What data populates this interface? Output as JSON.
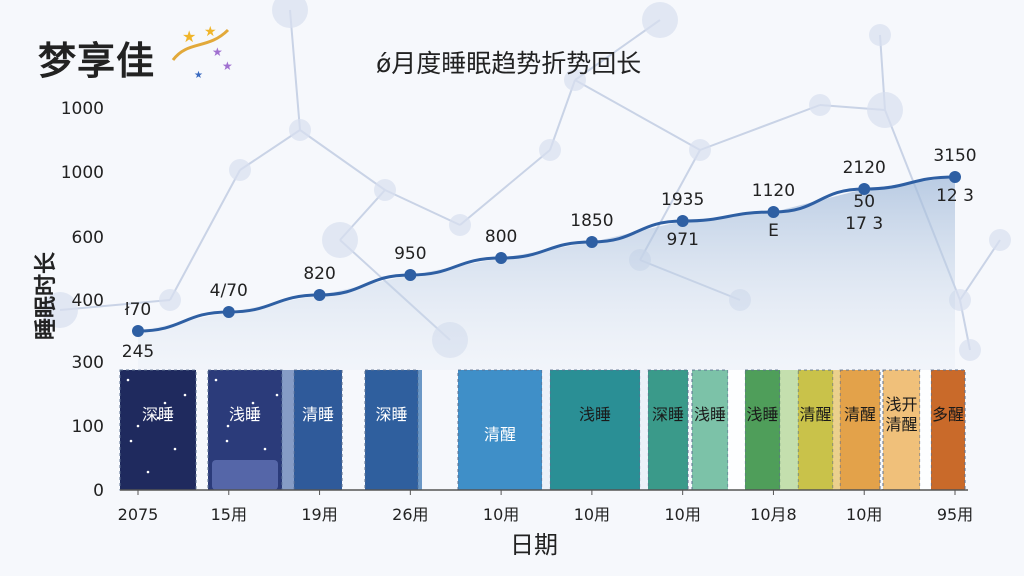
{
  "brand": {
    "name": "梦享佳"
  },
  "chart_data": {
    "type": "line",
    "title": "ǿ月度睡眠趋势折势回长",
    "xlabel": "日期",
    "ylabel": "睡眠时长",
    "y_ticks": [
      "1000",
      "1000",
      "600",
      "400",
      "300",
      "100",
      "0"
    ],
    "x_ticks": [
      "2075",
      "15用",
      "19用",
      "26用",
      "10用",
      "10用",
      "10用",
      "10月8",
      "10用",
      "95用"
    ],
    "series": [
      {
        "values": [
          245,
          470,
          820,
          950,
          800,
          1850,
          1935,
          1120,
          2120,
          3150
        ],
        "labels_above": [
          "ł70",
          "4/70",
          "820",
          "950",
          "800",
          "1850",
          "1935",
          "1120",
          "2120",
          "3150"
        ],
        "labels_below": [
          "245",
          "",
          "",
          "",
          "",
          "",
          "971",
          "Ε",
          "50\n17 3",
          "12 3"
        ]
      }
    ],
    "line_color": "#2e5fa3",
    "sleep_stage_blocks": [
      {
        "label": "深睡",
        "color": "#1f2a5e",
        "starry": true
      },
      {
        "label": "浅睡",
        "color": "#2b3b7a",
        "starry": true
      },
      {
        "label": "清睡",
        "color": "#2f5a9a"
      },
      {
        "label": "深睡",
        "color": "#2f5f9e"
      },
      {
        "label": "清醒",
        "color": "#3f8fc8"
      },
      {
        "label": "浅睡",
        "color": "#2a8f95"
      },
      {
        "label": "深睡",
        "color": "#3a9a8a"
      },
      {
        "label": "浅睡",
        "color": "#7cc2a8"
      },
      {
        "label": "浅睡",
        "color": "#4f9e5a"
      },
      {
        "label": "清醒",
        "color": "#c9c24a"
      },
      {
        "label": "清醒",
        "color": "#e3a24a"
      },
      {
        "label": "浅开\n清醒",
        "color": "#f0c07a"
      },
      {
        "label": "多醒",
        "color": "#c96a2a"
      }
    ]
  }
}
